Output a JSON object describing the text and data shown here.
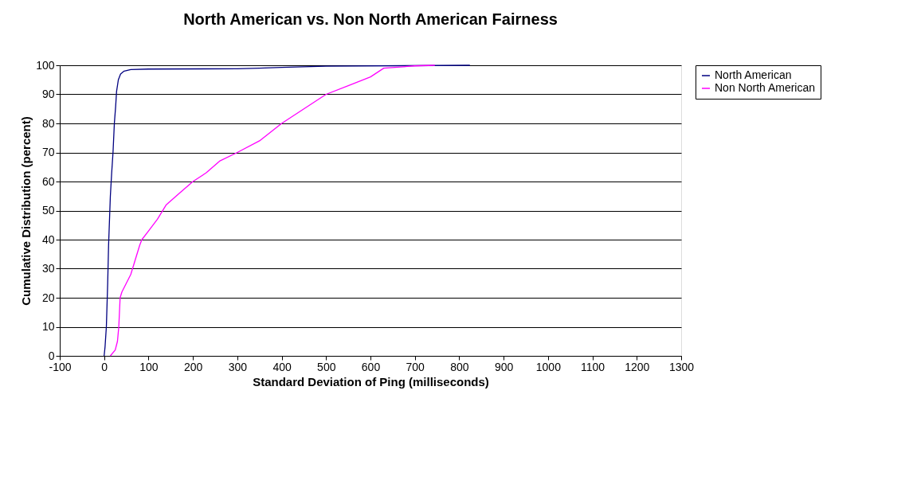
{
  "chart_data": {
    "type": "line",
    "title": "North American vs. Non North American Fairness",
    "xlabel": "Standard Deviation of Ping (milliseconds)",
    "ylabel": "Cumulative Distribution (percent)",
    "xlim": [
      -100,
      1300
    ],
    "xticks": [
      -100,
      0,
      100,
      200,
      300,
      400,
      500,
      600,
      700,
      800,
      900,
      1000,
      1100,
      1200,
      1300
    ],
    "ylim": [
      0,
      100
    ],
    "yticks": [
      0,
      10,
      20,
      30,
      40,
      50,
      60,
      70,
      80,
      90,
      100
    ],
    "grid": "y",
    "legend": "right",
    "marker": "none",
    "line_style": "solid",
    "series": [
      {
        "name": "North American",
        "color": "#000080",
        "x": [
          0,
          2,
          5,
          8,
          10,
          14,
          17,
          20,
          23,
          26,
          28,
          32,
          37,
          45,
          60,
          100,
          300,
          350,
          400,
          500,
          824
        ],
        "values": [
          0,
          3,
          10,
          25,
          38,
          55,
          63,
          70,
          80,
          86,
          91,
          95,
          97,
          98,
          98.5,
          98.7,
          98.8,
          99,
          99.3,
          99.7,
          100
        ]
      },
      {
        "name": "Non North American",
        "color": "#ff00ff",
        "x": [
          14,
          25,
          30,
          33,
          36,
          40,
          50,
          60,
          70,
          80,
          85,
          100,
          120,
          140,
          170,
          200,
          230,
          260,
          300,
          350,
          400,
          450,
          500,
          550,
          600,
          630,
          700,
          745
        ],
        "values": [
          0,
          2,
          5,
          10,
          20,
          22,
          25,
          28,
          33,
          38,
          40,
          43,
          47,
          52,
          56,
          60,
          63,
          67,
          70,
          74,
          80,
          85,
          90,
          93,
          96,
          99,
          99.8,
          100
        ]
      }
    ]
  }
}
